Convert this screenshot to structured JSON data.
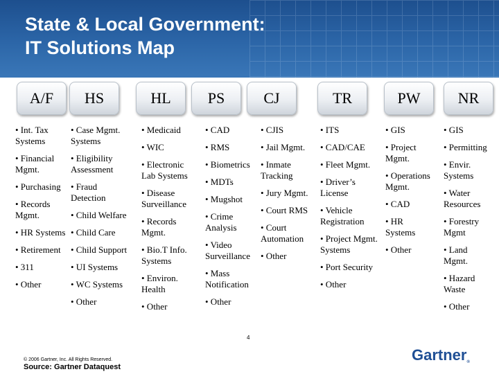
{
  "title": {
    "line1": "State & Local Government:",
    "line2": "IT Solutions Map"
  },
  "categories": [
    "A/F",
    "HS",
    "HL",
    "PS",
    "CJ",
    "TR",
    "PW",
    "NR"
  ],
  "columns": {
    "af": [
      "• Int. Tax Systems",
      "• Financial Mgmt.",
      "• Purchasing",
      "• Records Mgmt.",
      "• HR Systems",
      "• Retirement",
      "• 311",
      "• Other"
    ],
    "hs": [
      "• Case Mgmt. Systems",
      "• Eligibility Assessment",
      "• Fraud Detection",
      "• Child Welfare",
      "• Child Care",
      "• Child Support",
      "• UI Systems",
      "• WC Systems",
      "• Other"
    ],
    "hl": [
      "• Medicaid",
      "• WIC",
      "• Electronic Lab Systems",
      "• Disease Surveillance",
      "• Records Mgmt.",
      "• Bio.T Info. Systems",
      "• Environ. Health",
      "• Other"
    ],
    "ps": [
      "• CAD",
      "• RMS",
      "• Biometrics",
      "• MDTs",
      "• Mugshot",
      "• Crime Analysis",
      "• Video Surveillance",
      "• Mass Notification",
      "• Other"
    ],
    "cj": [
      "• CJIS",
      "• Jail Mgmt.",
      "• Inmate Tracking",
      "• Jury Mgmt.",
      "• Court RMS",
      "• Court Automation",
      "• Other"
    ],
    "tr": [
      "• ITS",
      "• CAD/CAE",
      "• Fleet Mgmt.",
      "• Driver’s License",
      "• Vehicle Registration",
      "• Project Mgmt. Systems",
      "• Port Security",
      "• Other"
    ],
    "pw": [
      "• GIS",
      "• Project Mgmt.",
      "• Operations Mgmt.",
      "• CAD",
      "• HR Systems",
      "• Other"
    ],
    "nr": [
      "• GIS",
      "• Permitting",
      "• Envir. Systems",
      "• Water Resources",
      "• Forestry Mgmt",
      "• Land Mgmt.",
      "• Hazard Waste",
      "• Other"
    ]
  },
  "footer": {
    "copyright": "© 2006 Gartner, Inc. All Rights Reserved.",
    "source": "Source: Gartner Dataquest",
    "page": "4",
    "logo": "Gartner"
  }
}
